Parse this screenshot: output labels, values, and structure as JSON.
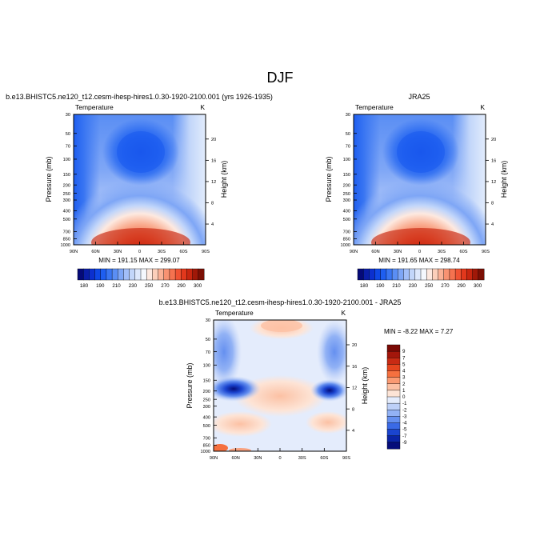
{
  "figure": {
    "title": "DJF",
    "panels": [
      {
        "id": "model",
        "header": "b.e13.BHISTC5.ne120_t12.cesm-ihesp-hires1.0.30-1920-2100.001 (yrs 1926-1935)",
        "left_label": "Temperature",
        "right_label": "K",
        "stats": "MIN = 191.15  MAX = 299.07"
      },
      {
        "id": "reanalysis",
        "header": "JRA25",
        "left_label": "Temperature",
        "right_label": "K",
        "stats": "MIN = 191.65  MAX = 298.74"
      },
      {
        "id": "difference",
        "header": "b.e13.BHISTC5.ne120_t12.cesm-ihesp-hires1.0.30-1920-2100.001 - JRA25",
        "left_label": "Temperature",
        "right_label": "K",
        "stats": "MIN =  -8.22  MAX =   7.27"
      }
    ]
  },
  "chart_data": [
    {
      "type": "heatmap",
      "title": "b.e13.BHISTC5.ne120_t12.cesm-ihesp-hires1.0.30-1920-2100.001 (yrs 1926-1935)",
      "xlabel": "",
      "ylabel": "Pressure (mb)",
      "y2label": "Height (km)",
      "x_ticks": [
        "90N",
        "60N",
        "30N",
        "0",
        "30S",
        "60S",
        "90S"
      ],
      "x_tick_values": [
        90,
        60,
        30,
        0,
        -30,
        -60,
        -90
      ],
      "xlim": [
        90,
        -90
      ],
      "y_ticks": [
        30,
        50,
        70,
        100,
        150,
        200,
        250,
        300,
        400,
        500,
        700,
        850,
        1000
      ],
      "ylim": [
        1000,
        30
      ],
      "yscale": "log",
      "y2_ticks": [
        4,
        8,
        12,
        16,
        20
      ],
      "units": "K",
      "min": 191.15,
      "max": 299.07,
      "colorbar_levels": [
        180,
        185,
        190,
        195,
        200,
        205,
        210,
        215,
        220,
        225,
        230,
        235,
        240,
        245,
        250,
        255,
        260,
        265,
        270,
        275,
        280,
        285,
        290,
        295,
        300
      ],
      "colorbar_labels": [
        "180",
        "190",
        "210",
        "230",
        "250",
        "270",
        "290",
        "300"
      ],
      "colorbar_colors": [
        "#050a78",
        "#0a1ea8",
        "#0c30cf",
        "#0f48e6",
        "#1e5ef0",
        "#3a76f2",
        "#5a8ef4",
        "#7ea6f6",
        "#a2bef8",
        "#c2d6fa",
        "#dde8fc",
        "#f4f8fe",
        "#fde9e0",
        "#fccfba",
        "#fab196",
        "#f89272",
        "#f5724f",
        "#f05232",
        "#e2381c",
        "#c82610",
        "#a01808",
        "#7a0f04"
      ],
      "colorbar_orientation": "horizontal",
      "grid": false
    },
    {
      "type": "heatmap",
      "title": "JRA25",
      "xlabel": "",
      "ylabel": "Pressure (mb)",
      "y2label": "Height (km)",
      "x_ticks": [
        "90N",
        "60N",
        "30N",
        "0",
        "30S",
        "60S",
        "90S"
      ],
      "x_tick_values": [
        90,
        60,
        30,
        0,
        -30,
        -60,
        -90
      ],
      "xlim": [
        90,
        -90
      ],
      "y_ticks": [
        30,
        50,
        70,
        100,
        150,
        200,
        250,
        300,
        400,
        500,
        700,
        850,
        1000
      ],
      "ylim": [
        1000,
        30
      ],
      "yscale": "log",
      "y2_ticks": [
        4,
        8,
        12,
        16,
        20
      ],
      "units": "K",
      "min": 191.65,
      "max": 298.74,
      "colorbar_levels": [
        180,
        185,
        190,
        195,
        200,
        205,
        210,
        215,
        220,
        225,
        230,
        235,
        240,
        245,
        250,
        255,
        260,
        265,
        270,
        275,
        280,
        285,
        290,
        295,
        300
      ],
      "colorbar_labels": [
        "180",
        "190",
        "210",
        "230",
        "250",
        "270",
        "290",
        "300"
      ],
      "colorbar_colors": [
        "#050a78",
        "#0a1ea8",
        "#0c30cf",
        "#0f48e6",
        "#1e5ef0",
        "#3a76f2",
        "#5a8ef4",
        "#7ea6f6",
        "#a2bef8",
        "#c2d6fa",
        "#dde8fc",
        "#f4f8fe",
        "#fde9e0",
        "#fccfba",
        "#fab196",
        "#f89272",
        "#f5724f",
        "#f05232",
        "#e2381c",
        "#c82610",
        "#a01808",
        "#7a0f04"
      ],
      "colorbar_orientation": "horizontal",
      "grid": false
    },
    {
      "type": "heatmap",
      "title": "b.e13.BHISTC5.ne120_t12.cesm-ihesp-hires1.0.30-1920-2100.001 - JRA25",
      "xlabel": "",
      "ylabel": "Pressure (mb)",
      "y2label": "Height (km)",
      "x_ticks": [
        "90N",
        "60N",
        "30N",
        "0",
        "30S",
        "60S",
        "90S"
      ],
      "x_tick_values": [
        90,
        60,
        30,
        0,
        -30,
        -60,
        -90
      ],
      "xlim": [
        90,
        -90
      ],
      "y_ticks": [
        30,
        50,
        70,
        100,
        150,
        200,
        250,
        300,
        400,
        500,
        700,
        850,
        1000
      ],
      "ylim": [
        1000,
        30
      ],
      "yscale": "log",
      "y2_ticks": [
        4,
        8,
        12,
        16,
        20
      ],
      "units": "K",
      "min": -8.22,
      "max": 7.27,
      "colorbar_labels": [
        "9",
        "7",
        "5",
        "4",
        "3",
        "2",
        "1",
        "0",
        "-1",
        "-2",
        "-3",
        "-4",
        "-5",
        "-7",
        "-9"
      ],
      "colorbar_colors": [
        "#7a0a05",
        "#a3160b",
        "#c82b14",
        "#e5461f",
        "#f5703f",
        "#fa9a72",
        "#fcc1a4",
        "#fde4d6",
        "#e4ecfc",
        "#bdd0f8",
        "#92b2f5",
        "#6590f0",
        "#3a6ae6",
        "#1a44cf",
        "#0a24a6",
        "#050d7a"
      ],
      "colorbar_orientation": "vertical",
      "grid": false
    }
  ]
}
